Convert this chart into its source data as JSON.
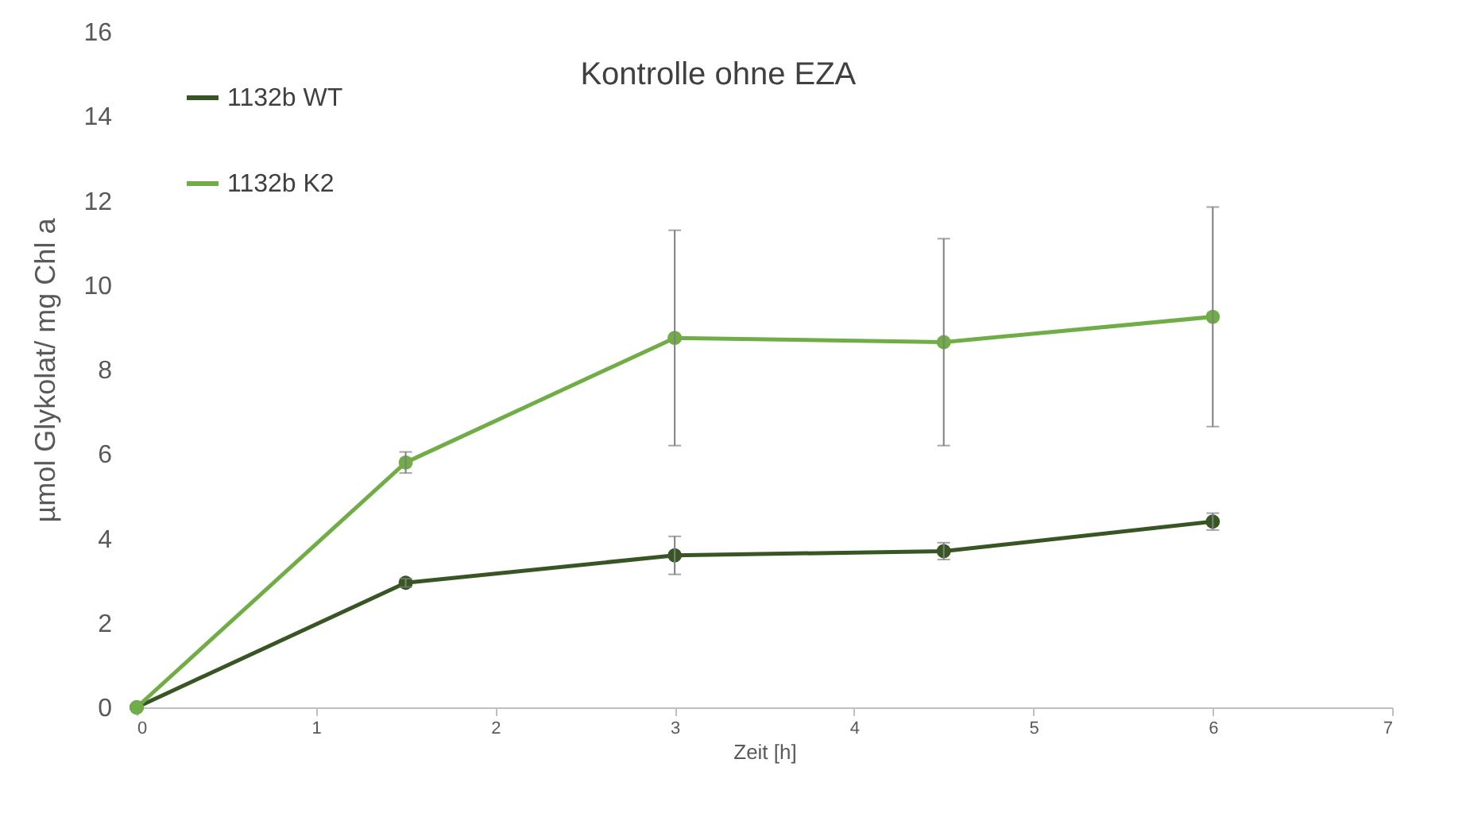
{
  "chart_data": {
    "type": "line",
    "title": "Kontrolle ohne EZA",
    "xlabel": "Zeit [h]",
    "ylabel": "µmol Glykolat/ mg Chl a",
    "x": [
      0,
      1.5,
      3,
      4.5,
      6
    ],
    "series": [
      {
        "name": "1132b WT",
        "color": "#375623",
        "values": [
          0,
          2.95,
          3.6,
          3.7,
          4.4
        ],
        "errors": [
          null,
          0.1,
          0.45,
          0.2,
          0.2
        ]
      },
      {
        "name": "1132b K2",
        "color": "#70ad47",
        "values": [
          0,
          5.8,
          8.75,
          8.65,
          9.25
        ],
        "errors": [
          null,
          0.25,
          2.55,
          2.45,
          2.6
        ]
      }
    ],
    "xlim": [
      0,
      7
    ],
    "xticks": [
      0,
      1,
      2,
      3,
      4,
      5,
      6,
      7
    ],
    "ylim": [
      0,
      16
    ],
    "yticks": [
      0,
      2,
      4,
      6,
      8,
      10,
      12,
      14,
      16
    ],
    "legend": "top left",
    "marker": "circle",
    "line_style": "solid"
  }
}
